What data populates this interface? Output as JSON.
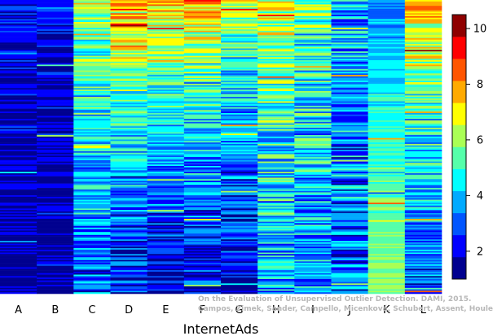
{
  "chart_data": {
    "type": "heatmap",
    "title": "",
    "xlabel": "InternetAds",
    "ylabel": "",
    "columns": [
      "A",
      "B",
      "C",
      "D",
      "E",
      "F",
      "G",
      "H",
      "I",
      "J",
      "K",
      "L"
    ],
    "colorbar": {
      "min": 1,
      "max": 10.5,
      "ticks": [
        2,
        4,
        6,
        8,
        10
      ],
      "colors": [
        "#00008f",
        "#0000ff",
        "#0055ff",
        "#00aaff",
        "#00ffff",
        "#55ffaa",
        "#aaff55",
        "#ffff00",
        "#ffaa00",
        "#ff5500",
        "#ff0000",
        "#8f0000"
      ]
    },
    "column_profiles": [
      {
        "column": "A",
        "start": 2.3,
        "end": 1.4,
        "spread": 0.9
      },
      {
        "column": "B",
        "start": 2.2,
        "end": 1.5,
        "spread": 0.9
      },
      {
        "column": "C",
        "start": 6.5,
        "end": 3.0,
        "spread": 1.5
      },
      {
        "column": "D",
        "start": 8.5,
        "end": 2.2,
        "spread": 1.5
      },
      {
        "column": "E",
        "start": 8.0,
        "end": 1.8,
        "spread": 1.2
      },
      {
        "column": "F",
        "start": 8.0,
        "end": 2.0,
        "spread": 1.5
      },
      {
        "column": "G",
        "start": 6.5,
        "end": 1.7,
        "spread": 1.5
      },
      {
        "column": "H",
        "start": 7.0,
        "end": 3.5,
        "spread": 1.8
      },
      {
        "column": "I",
        "start": 5.5,
        "end": 3.5,
        "spread": 1.8
      },
      {
        "column": "J",
        "start": 4.0,
        "end": 3.0,
        "spread": 1.8
      },
      {
        "column": "K",
        "start": 3.0,
        "end": 6.0,
        "spread": 0.6
      },
      {
        "column": "L",
        "start": 8.0,
        "end": 2.8,
        "spread": 1.5
      }
    ],
    "row_count": 200,
    "grid": false,
    "legend": "colorbar-right"
  },
  "watermark": {
    "line1": "On the Evaluation of Unsupervised Outlier Detection. DAMI, 2015.",
    "line2": "Campos, Zimek, Sander, Campello, Micenková, Schubert, Assent, Houle"
  }
}
